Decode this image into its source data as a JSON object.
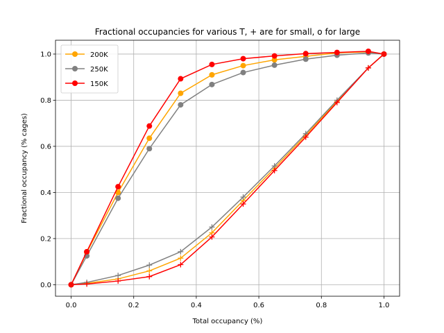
{
  "chart_data": {
    "type": "line",
    "title": "Fractional occupancies for various T, + are for small, o for large",
    "xlabel": "Total occupancy (%)",
    "ylabel": "Fractional occupancy (% cages)",
    "xlim": [
      -0.05,
      1.05
    ],
    "ylim": [
      -0.05,
      1.06
    ],
    "xticks": [
      "0.0",
      "0.2",
      "0.4",
      "0.6",
      "0.8",
      "1.0"
    ],
    "xtick_values": [
      0,
      0.2,
      0.4,
      0.6,
      0.8,
      1.0
    ],
    "yticks": [
      "0.0",
      "0.2",
      "0.4",
      "0.6",
      "0.8",
      "1.0"
    ],
    "ytick_values": [
      0,
      0.2,
      0.4,
      0.6,
      0.8,
      1.0
    ],
    "grid": true,
    "legend_position": "top-left",
    "x": [
      0,
      0.05,
      0.15,
      0.25,
      0.35,
      0.45,
      0.55,
      0.65,
      0.75,
      0.85,
      0.95,
      1.0
    ],
    "series": [
      {
        "name": "200K",
        "color": "#ffa500",
        "marker": "circle",
        "in_legend": true,
        "values": [
          0,
          0.14,
          0.4,
          0.635,
          0.83,
          0.91,
          0.95,
          0.975,
          0.99,
          1.005,
          1.01,
          1.0
        ]
      },
      {
        "name": "250K",
        "color": "#808080",
        "marker": "circle",
        "in_legend": true,
        "values": [
          0,
          0.125,
          0.375,
          0.59,
          0.78,
          0.868,
          0.92,
          0.952,
          0.978,
          0.995,
          1.005,
          1.0
        ]
      },
      {
        "name": "150K",
        "color": "#ff0000",
        "marker": "circle",
        "in_legend": true,
        "values": [
          0,
          0.143,
          0.425,
          0.688,
          0.893,
          0.955,
          0.98,
          0.992,
          1.002,
          1.007,
          1.012,
          1.0
        ]
      },
      {
        "color": "#ffa500",
        "marker": "plus",
        "in_legend": false,
        "values": [
          0,
          0.006,
          0.025,
          0.06,
          0.115,
          0.225,
          0.365,
          0.505,
          0.648,
          0.795,
          0.94,
          1.0
        ]
      },
      {
        "color": "#808080",
        "marker": "plus",
        "in_legend": false,
        "values": [
          0,
          0.01,
          0.04,
          0.085,
          0.143,
          0.25,
          0.38,
          0.515,
          0.655,
          0.8,
          0.94,
          1.0
        ]
      },
      {
        "color": "#ff0000",
        "marker": "plus",
        "in_legend": false,
        "values": [
          0,
          0.003,
          0.016,
          0.035,
          0.087,
          0.207,
          0.35,
          0.495,
          0.64,
          0.79,
          0.94,
          1.0
        ]
      }
    ]
  }
}
